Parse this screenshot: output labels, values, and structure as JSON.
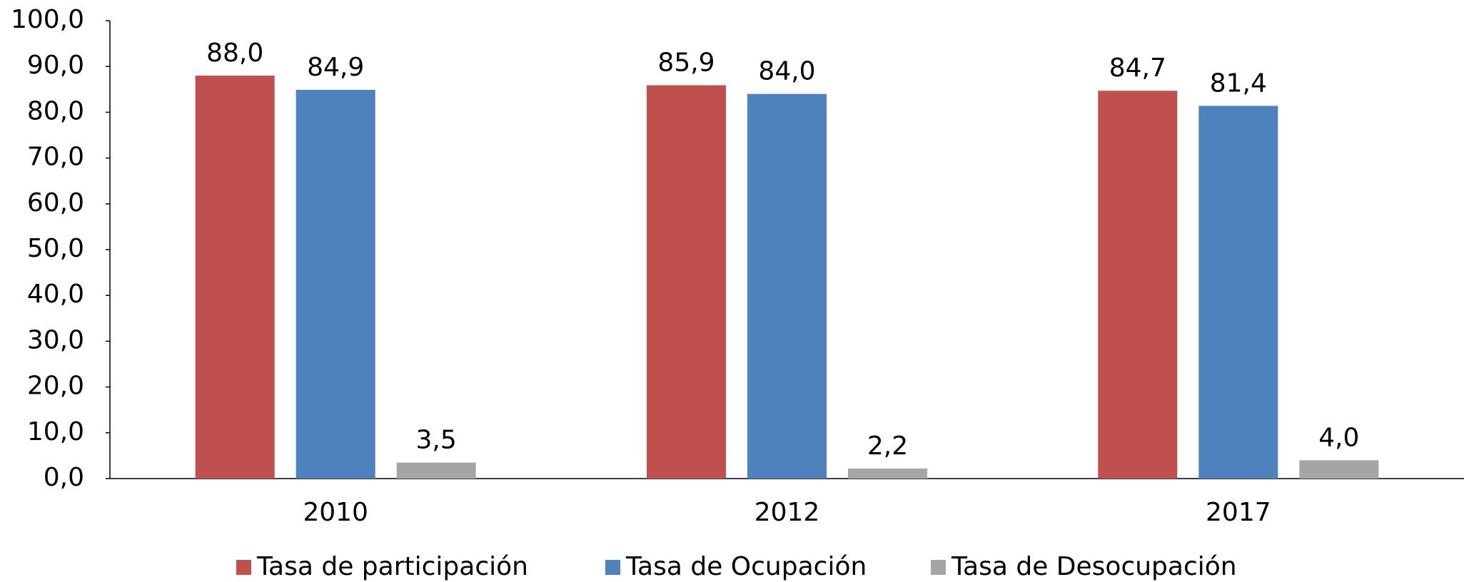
{
  "chart_data": {
    "type": "bar",
    "categories": [
      "2010",
      "2012",
      "2017"
    ],
    "series": [
      {
        "name": "Tasa de participación",
        "color": "#c0504d",
        "values": [
          88.0,
          85.9,
          84.7
        ],
        "value_labels": [
          "88,0",
          "85,9",
          "84,7"
        ]
      },
      {
        "name": "Tasa de Ocupación",
        "color": "#4f81bd",
        "values": [
          84.9,
          84.0,
          81.4
        ],
        "value_labels": [
          "84,9",
          "84,0",
          "81,4"
        ]
      },
      {
        "name": "Tasa de Desocupación",
        "color": "#a5a5a5",
        "values": [
          3.5,
          2.2,
          4.0
        ],
        "value_labels": [
          "3,5",
          "2,2",
          "4,0"
        ]
      }
    ],
    "ylim": [
      0,
      100
    ],
    "yticks": [
      {
        "value": 0,
        "label": "0,0"
      },
      {
        "value": 10,
        "label": "10,0"
      },
      {
        "value": 20,
        "label": "20,0"
      },
      {
        "value": 30,
        "label": "30,0"
      },
      {
        "value": 40,
        "label": "40,0"
      },
      {
        "value": 50,
        "label": "50,0"
      },
      {
        "value": 60,
        "label": "60,0"
      },
      {
        "value": 70,
        "label": "70,0"
      },
      {
        "value": 80,
        "label": "80,0"
      },
      {
        "value": 90,
        "label": "90,0"
      },
      {
        "value": 100,
        "label": "100,0"
      }
    ],
    "grid": false,
    "legend": "bottom"
  }
}
